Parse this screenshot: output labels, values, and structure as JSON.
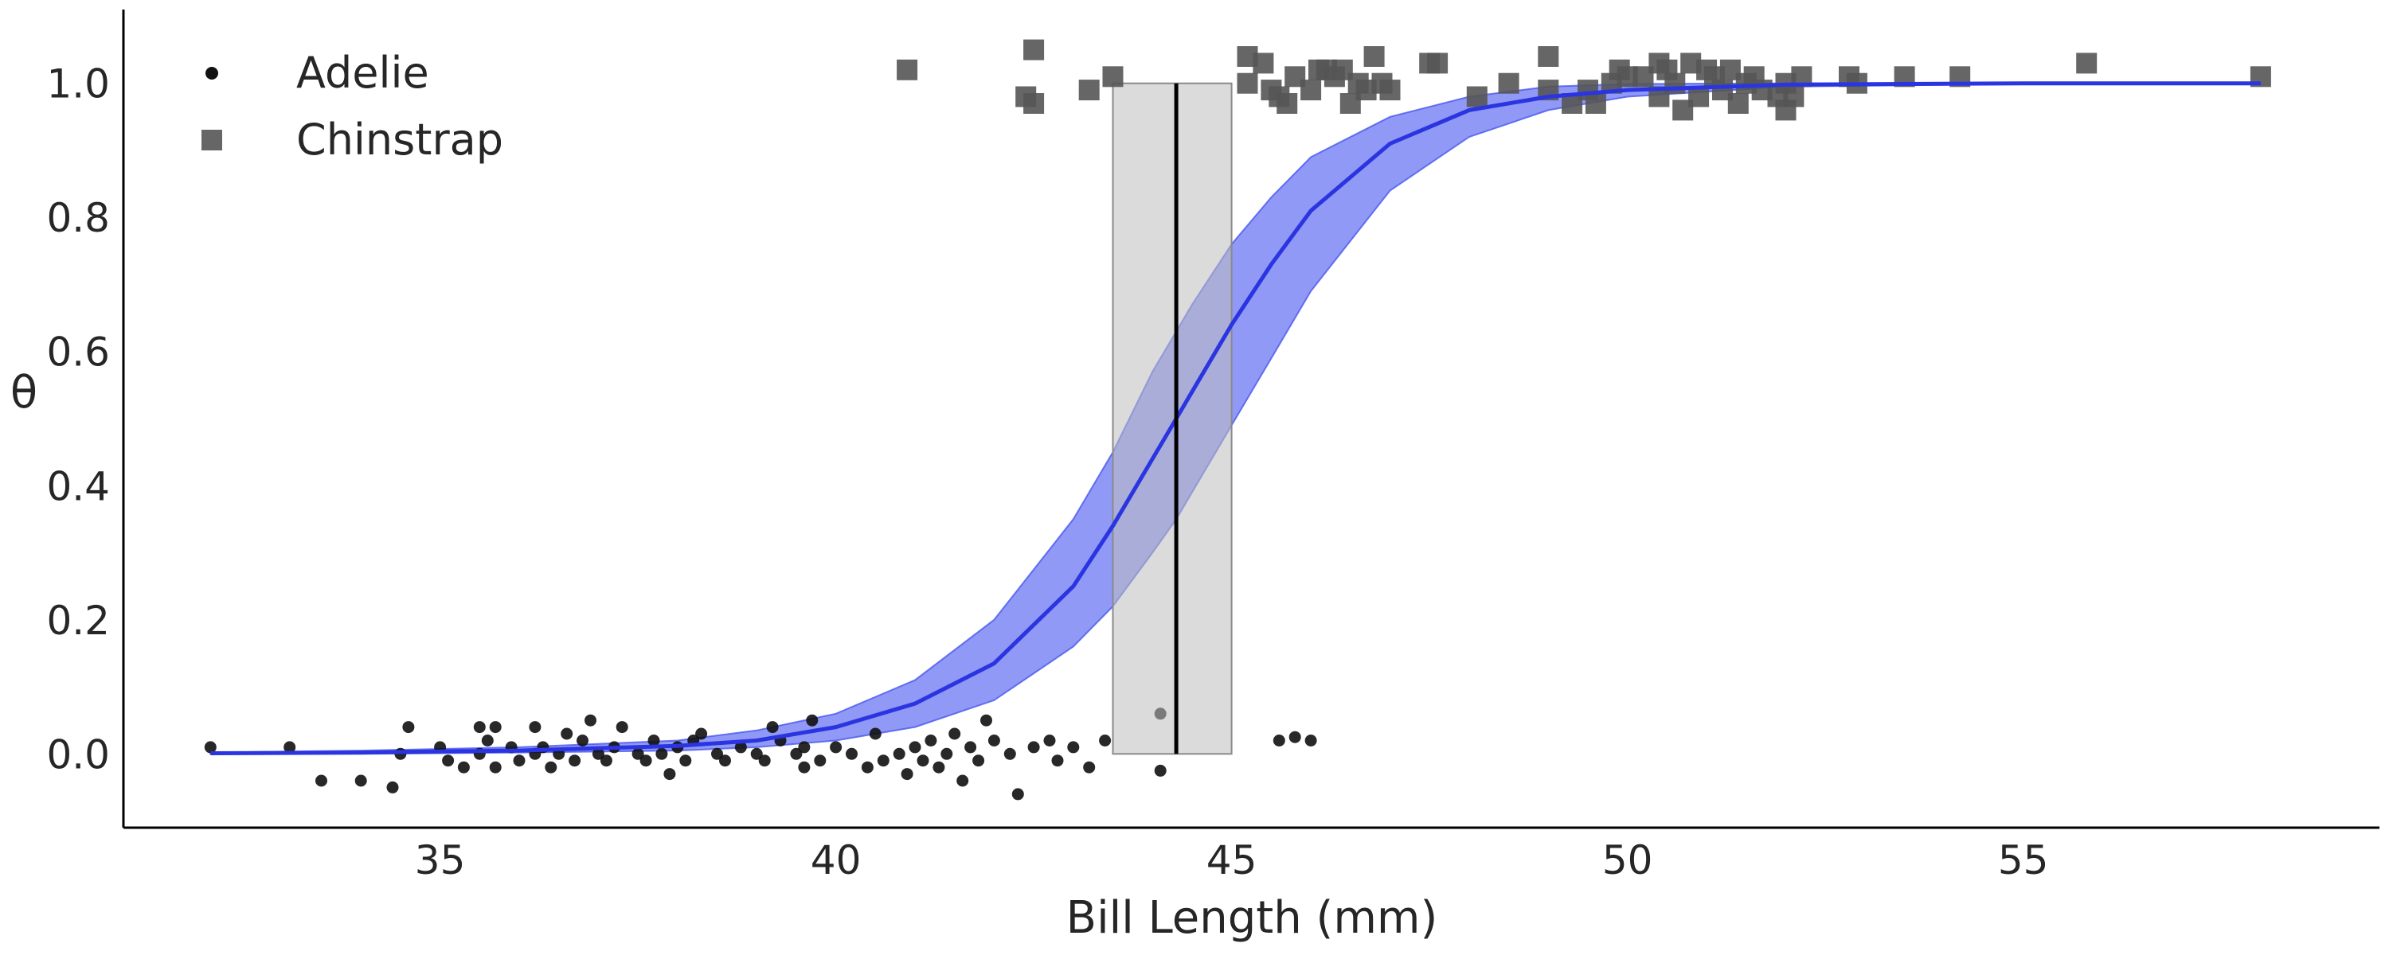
{
  "chart_data": {
    "type": "scatter",
    "title": "",
    "xlabel": "Bill Length (mm)",
    "ylabel": "θ",
    "xlim": [
      31,
      59.5
    ],
    "ylim": [
      -0.11,
      1.11
    ],
    "x_ticks": [
      35,
      40,
      45,
      50,
      55
    ],
    "x_tick_labels": [
      "35",
      "40",
      "45",
      "50",
      "55"
    ],
    "y_ticks": [
      0.0,
      0.2,
      0.4,
      0.6,
      0.8,
      1.0
    ],
    "y_tick_labels": [
      "0.0",
      "0.2",
      "0.4",
      "0.6",
      "0.8",
      "1.0"
    ],
    "grid": false,
    "legend_position": "top-left",
    "legend": [
      {
        "label": "Adelie",
        "marker": "circle",
        "color": "#111111"
      },
      {
        "label": "Chinstrap",
        "marker": "square",
        "color": "#555555"
      }
    ],
    "colors": {
      "curve": "#2a34e0",
      "band": "#4050ee",
      "boundary_line": "#000000",
      "boundary_band": "#bdbdbd",
      "adelie": "#111111",
      "chinstrap": "#555555"
    },
    "series": [
      {
        "name": "Adelie",
        "kind": "points",
        "points": [
          [
            32.1,
            0.01
          ],
          [
            33.1,
            0.01
          ],
          [
            33.5,
            -0.04
          ],
          [
            34.0,
            -0.04
          ],
          [
            34.4,
            -0.05
          ],
          [
            34.5,
            0.0
          ],
          [
            34.6,
            0.04
          ],
          [
            35.0,
            0.01
          ],
          [
            35.1,
            -0.01
          ],
          [
            35.3,
            -0.02
          ],
          [
            35.5,
            0.0
          ],
          [
            35.5,
            0.04
          ],
          [
            35.6,
            0.02
          ],
          [
            35.7,
            0.04
          ],
          [
            35.7,
            -0.02
          ],
          [
            35.9,
            0.01
          ],
          [
            36.0,
            -0.01
          ],
          [
            36.2,
            0.0
          ],
          [
            36.2,
            0.04
          ],
          [
            36.3,
            0.01
          ],
          [
            36.4,
            -0.02
          ],
          [
            36.5,
            0.0
          ],
          [
            36.6,
            0.03
          ],
          [
            36.7,
            -0.01
          ],
          [
            36.8,
            0.02
          ],
          [
            36.9,
            0.05
          ],
          [
            37.0,
            0.0
          ],
          [
            37.1,
            -0.01
          ],
          [
            37.2,
            0.01
          ],
          [
            37.3,
            0.04
          ],
          [
            37.5,
            0.0
          ],
          [
            37.6,
            -0.01
          ],
          [
            37.7,
            0.02
          ],
          [
            37.8,
            0.0
          ],
          [
            37.9,
            -0.03
          ],
          [
            38.0,
            0.01
          ],
          [
            38.1,
            -0.01
          ],
          [
            38.2,
            0.02
          ],
          [
            38.3,
            0.03
          ],
          [
            38.5,
            0.0
          ],
          [
            38.6,
            -0.01
          ],
          [
            38.8,
            0.01
          ],
          [
            39.0,
            0.0
          ],
          [
            39.1,
            -0.01
          ],
          [
            39.2,
            0.04
          ],
          [
            39.3,
            0.02
          ],
          [
            39.5,
            0.0
          ],
          [
            39.6,
            -0.02
          ],
          [
            39.6,
            0.01
          ],
          [
            39.7,
            0.05
          ],
          [
            39.8,
            -0.01
          ],
          [
            40.0,
            0.01
          ],
          [
            40.2,
            0.0
          ],
          [
            40.4,
            -0.02
          ],
          [
            40.5,
            0.03
          ],
          [
            40.6,
            -0.01
          ],
          [
            40.8,
            0.0
          ],
          [
            40.9,
            -0.03
          ],
          [
            41.0,
            0.01
          ],
          [
            41.1,
            -0.01
          ],
          [
            41.2,
            0.02
          ],
          [
            41.3,
            -0.02
          ],
          [
            41.4,
            0.0
          ],
          [
            41.5,
            0.03
          ],
          [
            41.6,
            -0.04
          ],
          [
            41.7,
            0.01
          ],
          [
            41.8,
            -0.01
          ],
          [
            41.9,
            0.05
          ],
          [
            42.0,
            0.02
          ],
          [
            42.2,
            0.0
          ],
          [
            42.3,
            -0.06
          ],
          [
            42.5,
            0.01
          ],
          [
            42.7,
            0.02
          ],
          [
            42.8,
            -0.01
          ],
          [
            43.0,
            0.01
          ],
          [
            43.2,
            -0.02
          ],
          [
            43.4,
            0.02
          ],
          [
            44.1,
            0.06
          ],
          [
            44.1,
            -0.025
          ],
          [
            45.6,
            0.02
          ],
          [
            45.8,
            0.025
          ],
          [
            46.0,
            0.02
          ]
        ]
      },
      {
        "name": "Chinstrap",
        "kind": "points",
        "points": [
          [
            40.9,
            1.02
          ],
          [
            42.4,
            0.98
          ],
          [
            42.5,
            0.97
          ],
          [
            42.5,
            1.05
          ],
          [
            43.2,
            0.99
          ],
          [
            43.5,
            1.01
          ],
          [
            45.2,
            1.0
          ],
          [
            45.2,
            1.04
          ],
          [
            45.4,
            1.03
          ],
          [
            45.5,
            0.99
          ],
          [
            45.6,
            0.98
          ],
          [
            45.7,
            0.97
          ],
          [
            45.8,
            1.01
          ],
          [
            46.0,
            0.99
          ],
          [
            46.1,
            1.02
          ],
          [
            46.2,
            1.02
          ],
          [
            46.3,
            1.01
          ],
          [
            46.4,
            1.02
          ],
          [
            46.5,
            0.97
          ],
          [
            46.6,
            1.0
          ],
          [
            46.7,
            0.99
          ],
          [
            46.8,
            1.04
          ],
          [
            46.9,
            1.0
          ],
          [
            47.0,
            0.99
          ],
          [
            47.5,
            1.03
          ],
          [
            47.6,
            1.03
          ],
          [
            48.1,
            0.98
          ],
          [
            48.5,
            1.0
          ],
          [
            49.0,
            1.04
          ],
          [
            49.0,
            0.99
          ],
          [
            49.3,
            0.97
          ],
          [
            49.5,
            0.99
          ],
          [
            49.6,
            0.97
          ],
          [
            49.8,
            1.0
          ],
          [
            49.9,
            1.02
          ],
          [
            50.0,
            1.01
          ],
          [
            50.2,
            1.01
          ],
          [
            50.4,
            1.03
          ],
          [
            50.4,
            0.98
          ],
          [
            50.5,
            1.02
          ],
          [
            50.6,
            1.0
          ],
          [
            50.7,
            0.96
          ],
          [
            50.8,
            1.03
          ],
          [
            50.9,
            0.98
          ],
          [
            51.0,
            1.02
          ],
          [
            51.1,
            1.01
          ],
          [
            51.2,
            0.99
          ],
          [
            51.3,
            1.02
          ],
          [
            51.4,
            0.97
          ],
          [
            51.5,
            1.0
          ],
          [
            51.6,
            1.01
          ],
          [
            51.7,
            0.99
          ],
          [
            51.9,
            0.98
          ],
          [
            52.0,
            0.96
          ],
          [
            52.0,
            1.0
          ],
          [
            52.1,
            0.98
          ],
          [
            52.2,
            1.01
          ],
          [
            52.8,
            1.01
          ],
          [
            52.9,
            1.0
          ],
          [
            53.5,
            1.01
          ],
          [
            54.2,
            1.01
          ],
          [
            55.8,
            1.03
          ],
          [
            58.0,
            1.01
          ]
        ]
      },
      {
        "name": "",
        "kind": "mean_curve",
        "x": [
          32.1,
          34,
          36,
          38,
          39,
          40,
          41,
          42,
          43,
          43.5,
          44,
          44.3,
          44.5,
          45,
          45.5,
          46,
          47,
          48,
          49,
          50,
          52,
          55,
          58
        ],
        "y": [
          0.001,
          0.002,
          0.005,
          0.012,
          0.02,
          0.04,
          0.075,
          0.135,
          0.25,
          0.34,
          0.44,
          0.5,
          0.54,
          0.64,
          0.73,
          0.81,
          0.91,
          0.96,
          0.98,
          0.99,
          0.998,
          1.0,
          1.0
        ]
      },
      {
        "name": "",
        "kind": "hdi_band",
        "x": [
          32.1,
          34,
          36,
          38,
          39,
          40,
          41,
          42,
          43,
          43.5,
          44,
          44.3,
          44.5,
          45,
          45.5,
          46,
          47,
          48,
          49,
          50,
          52,
          55,
          58
        ],
        "lower": [
          0.0,
          0.0,
          0.002,
          0.005,
          0.01,
          0.02,
          0.04,
          0.08,
          0.16,
          0.22,
          0.3,
          0.35,
          0.39,
          0.49,
          0.59,
          0.69,
          0.84,
          0.92,
          0.96,
          0.98,
          0.995,
          0.999,
          1.0
        ],
        "upper": [
          0.002,
          0.005,
          0.01,
          0.02,
          0.035,
          0.06,
          0.11,
          0.2,
          0.35,
          0.45,
          0.57,
          0.63,
          0.67,
          0.76,
          0.83,
          0.89,
          0.95,
          0.98,
          0.995,
          0.999,
          1.0,
          1.0,
          1.0
        ]
      }
    ],
    "decision_boundary": {
      "mean": 44.3,
      "hdi": [
        43.5,
        45.0
      ],
      "y_range": [
        0.0,
        1.0
      ]
    }
  }
}
